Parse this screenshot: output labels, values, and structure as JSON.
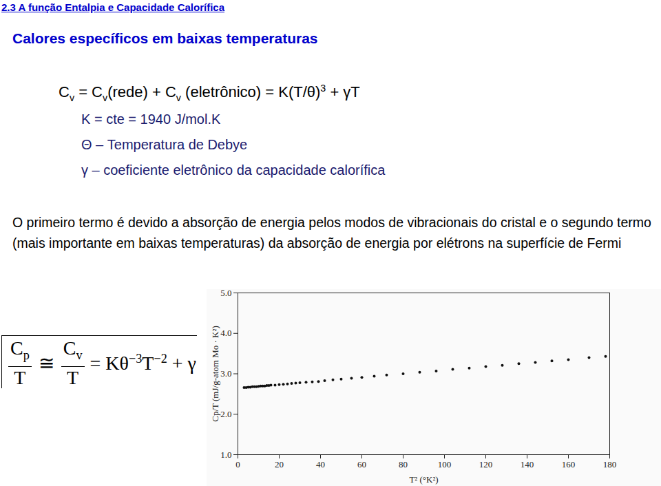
{
  "header": "2.3 A função Entalpia e Capacidade Calorífica",
  "title": "Calores específicos em baixas temperaturas",
  "equation": [
    {
      "text": "C"
    },
    {
      "text": "v",
      "style": "sub"
    },
    {
      "text": " = C"
    },
    {
      "text": "v",
      "style": "sub"
    },
    {
      "text": "(rede) + C"
    },
    {
      "text": "v",
      "style": "sub"
    },
    {
      "text": " (eletrônico) = K(T/θ)"
    },
    {
      "text": "3",
      "style": "sup"
    },
    {
      "text": " + γT"
    }
  ],
  "definitions": [
    "K = cte = 1940 J/mol.K",
    "Θ – Temperatura de Debye",
    "γ – coeficiente eletrônico da capacidade calorífica"
  ],
  "paragraph": "O primeiro termo é devido a absorção de energia pelos modos de vibracionais do cristal e o segundo termo (mais importante em baixas temperaturas) da absorção de energia por elétrons na superfície de Fermi",
  "formula": {
    "fraction_1": {
      "num": [
        {
          "text": "C"
        },
        {
          "text": "p",
          "style": "sub"
        }
      ],
      "den": "T"
    },
    "approx": "≅",
    "fraction_2": {
      "num": [
        {
          "text": "C"
        },
        {
          "text": "v",
          "style": "sub"
        }
      ],
      "den": "T"
    },
    "rhs": [
      {
        "text": "= Kθ"
      },
      {
        "text": "−3",
        "style": "sup"
      },
      {
        "text": "T"
      },
      {
        "text": "−2",
        "style": "sup"
      },
      {
        "text": " + γ"
      }
    ]
  },
  "chart_data": {
    "type": "scatter",
    "x_label": "T² (°K²)",
    "y_label": "Cp/T (mJ/g-atom Mo · K²)",
    "x": [
      3,
      4,
      5,
      6,
      7,
      8,
      9,
      10,
      11,
      12,
      13,
      14,
      15,
      16,
      18,
      20,
      22,
      24,
      26,
      28,
      30,
      33,
      36,
      39,
      42,
      46,
      50,
      55,
      60,
      66,
      72,
      80,
      88,
      96,
      104,
      112,
      120,
      128,
      136,
      144,
      152,
      160,
      170,
      178
    ],
    "values": [
      2.66,
      2.66,
      2.67,
      2.67,
      2.68,
      2.68,
      2.68,
      2.69,
      2.7,
      2.7,
      2.7,
      2.71,
      2.71,
      2.72,
      2.72,
      2.73,
      2.74,
      2.75,
      2.76,
      2.77,
      2.78,
      2.79,
      2.8,
      2.81,
      2.83,
      2.85,
      2.87,
      2.89,
      2.91,
      2.94,
      2.97,
      3.0,
      3.04,
      3.07,
      3.11,
      3.14,
      3.18,
      3.21,
      3.25,
      3.28,
      3.32,
      3.35,
      3.4,
      3.43
    ],
    "color": "#111111",
    "marker": "circle",
    "xlim": [
      0,
      180
    ],
    "xticks": [
      0,
      20,
      40,
      60,
      80,
      100,
      120,
      140,
      160,
      180
    ],
    "ylim": [
      1.0,
      5.0
    ],
    "yticks": [
      {
        "value": 1,
        "label": "1.0"
      },
      {
        "value": 2,
        "label": "2.0"
      },
      {
        "value": 3,
        "label": "3.0"
      },
      {
        "value": 4,
        "label": "4.0"
      },
      {
        "value": 5,
        "label": "5.0"
      }
    ],
    "grid": false
  }
}
